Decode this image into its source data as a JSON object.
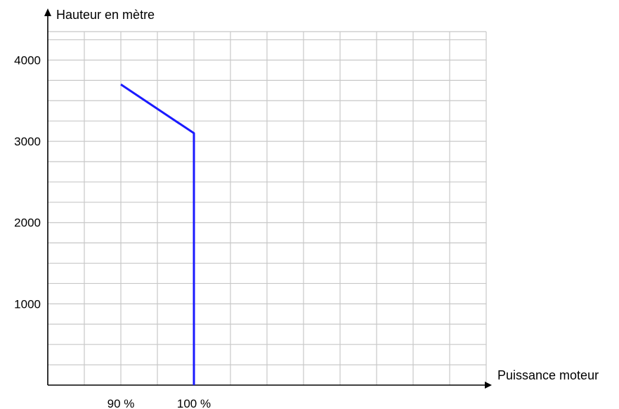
{
  "chart_data": {
    "type": "line",
    "title": "",
    "xlabel": "Puissance moteur",
    "ylabel": "Hauteur en mètre",
    "x_unit": "%",
    "xlim": [
      80,
      140
    ],
    "ylim": [
      0,
      4350
    ],
    "x_ticks": [
      {
        "value": 90,
        "label": "90 %"
      },
      {
        "value": 100,
        "label": "100 %"
      }
    ],
    "y_ticks": [
      {
        "value": 1000,
        "label": "1000"
      },
      {
        "value": 2000,
        "label": "2000"
      },
      {
        "value": 3000,
        "label": "3000"
      },
      {
        "value": 4000,
        "label": "4000"
      }
    ],
    "grid": true,
    "series": [
      {
        "color": "#1a1aff",
        "points": [
          {
            "x": 100,
            "y": 0
          },
          {
            "x": 100,
            "y": 3100
          },
          {
            "x": 90,
            "y": 3700
          }
        ]
      }
    ]
  }
}
